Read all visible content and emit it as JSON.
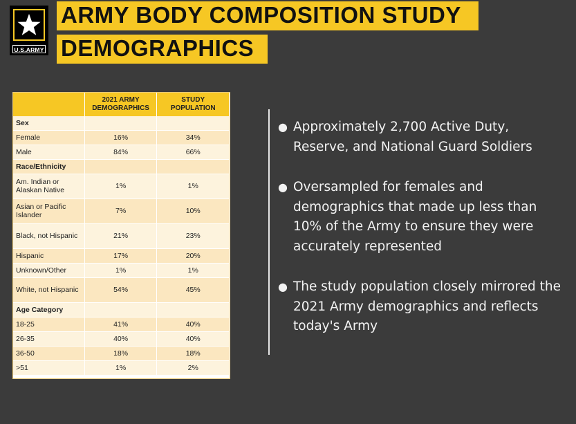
{
  "logo": {
    "text": "U.S.ARMY"
  },
  "title": {
    "line1": "ARMY BODY COMPOSITION STUDY",
    "line2": "DEMOGRAPHICS"
  },
  "table": {
    "headers": [
      "",
      "2021 ARMY DEMOGRAPHICS",
      "STUDY POPULATION"
    ],
    "rows": [
      {
        "label": "Sex",
        "army": "",
        "study": "",
        "section": true
      },
      {
        "label": "Female",
        "army": "16%",
        "study": "34%"
      },
      {
        "label": "Male",
        "army": "84%",
        "study": "66%"
      },
      {
        "label": "Race/Ethnicity",
        "army": "",
        "study": "",
        "section": true
      },
      {
        "label": "Am. Indian or Alaskan Native",
        "army": "1%",
        "study": "1%"
      },
      {
        "label": "Asian or Pacific Islander",
        "army": "7%",
        "study": "10%"
      },
      {
        "label": "Black, not Hispanic",
        "army": "21%",
        "study": "23%"
      },
      {
        "label": "Hispanic",
        "army": "17%",
        "study": "20%"
      },
      {
        "label": "Unknown/Other",
        "army": "1%",
        "study": "1%"
      },
      {
        "label": "White, not Hispanic",
        "army": "54%",
        "study": "45%"
      },
      {
        "label": "Age Category",
        "army": "",
        "study": "",
        "section": true
      },
      {
        "label": "18-25",
        "army": "41%",
        "study": "40%"
      },
      {
        "label": "26-35",
        "army": "40%",
        "study": "40%"
      },
      {
        "label": "36-50",
        "army": "18%",
        "study": "18%"
      },
      {
        "label": ">51",
        "army": "1%",
        "study": "2%"
      }
    ]
  },
  "bullets": [
    "Approximately 2,700 Active Duty, Reserve, and National Guard Soldiers",
    "Oversampled for females and demographics that made up less than 10% of the Army to ensure they were accurately represented",
    "The study population closely mirrored the 2021 Army demographics and reflects today's Army"
  ],
  "colors": {
    "accent": "#f6c724",
    "background": "#3b3b3b",
    "table_light": "#fdf3dd",
    "table_dark": "#fbe7c0"
  }
}
